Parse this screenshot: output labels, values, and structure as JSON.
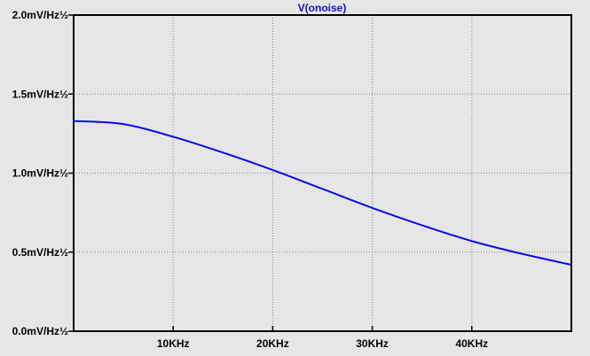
{
  "chart_data": {
    "type": "line",
    "title": "",
    "xlabel": "",
    "ylabel": "",
    "xlim": [
      0,
      50000
    ],
    "ylim": [
      0.0,
      2.0
    ],
    "grid": true,
    "x_ticks": [
      {
        "value": 10000,
        "label": "10KHz"
      },
      {
        "value": 20000,
        "label": "20KHz"
      },
      {
        "value": 30000,
        "label": "30KHz"
      },
      {
        "value": 40000,
        "label": "40KHz"
      }
    ],
    "y_ticks": [
      {
        "value": 0.0,
        "label": "0.0mV/Hz½"
      },
      {
        "value": 0.5,
        "label": "0.5mV/Hz½"
      },
      {
        "value": 1.0,
        "label": "1.0mV/Hz½"
      },
      {
        "value": 1.5,
        "label": "1.5mV/Hz½"
      },
      {
        "value": 2.0,
        "label": "2.0mV/Hz½"
      }
    ],
    "series": [
      {
        "name": "V(onoise)",
        "color": "#0a0af0",
        "x": [
          0,
          5000,
          10000,
          15000,
          20000,
          25000,
          30000,
          35000,
          40000,
          45000,
          50000
        ],
        "y": [
          1.33,
          1.31,
          1.23,
          1.13,
          1.02,
          0.9,
          0.78,
          0.67,
          0.57,
          0.49,
          0.42
        ]
      }
    ]
  },
  "colors": {
    "background": "#e6e6e6",
    "plot_area": "#e6e6e6",
    "axis": "#000000",
    "grid": "#808080",
    "trace": "#0a0af0",
    "title": "#1010e0"
  }
}
